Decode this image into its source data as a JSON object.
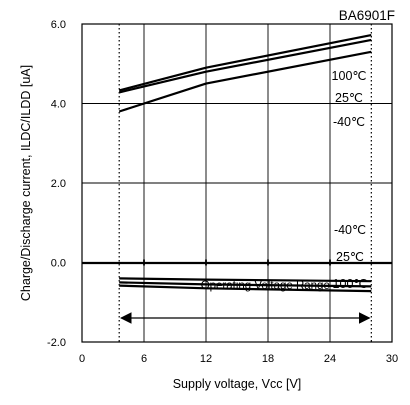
{
  "chart_data": {
    "type": "line",
    "corner_label": "BA6901F",
    "xlabel": "Supply voltage, Vcc [V]",
    "ylabel": "Charge/Discharge current, ILDC/ILDD [uA]",
    "xlim": [
      0,
      30
    ],
    "ylim": [
      -2.0,
      6.0
    ],
    "x_ticks": [
      0,
      6,
      12,
      18,
      24,
      30
    ],
    "y_ticks": [
      -2.0,
      0.0,
      2.0,
      4.0,
      6.0
    ],
    "x_tick_labels": [
      "0",
      "6",
      "12",
      "18",
      "24",
      "30"
    ],
    "y_tick_labels": [
      "-2.0",
      "0.0",
      "2.0",
      "4.0",
      "6.0"
    ],
    "grid": true,
    "dotted_verticals": [
      3.6,
      28
    ],
    "series": [
      {
        "name": "100℃",
        "group": "charge",
        "x": [
          3.6,
          12,
          28
        ],
        "y": [
          4.33,
          4.9,
          5.72
        ]
      },
      {
        "name": "25℃",
        "group": "charge",
        "x": [
          3.6,
          12,
          28
        ],
        "y": [
          4.28,
          4.8,
          5.6
        ]
      },
      {
        "name": "-40℃",
        "group": "charge",
        "x": [
          3.6,
          12,
          28
        ],
        "y": [
          3.8,
          4.5,
          5.3
        ]
      },
      {
        "name": "-40℃",
        "group": "discharge",
        "x": [
          3.6,
          12,
          28
        ],
        "y": [
          -0.4,
          -0.43,
          -0.47
        ]
      },
      {
        "name": "25℃",
        "group": "discharge",
        "x": [
          3.6,
          12,
          28
        ],
        "y": [
          -0.5,
          -0.55,
          -0.6
        ]
      },
      {
        "name": "100℃",
        "group": "discharge",
        "x": [
          3.6,
          12,
          28
        ],
        "y": [
          -0.58,
          -0.65,
          -0.72
        ]
      }
    ],
    "charge_labels": [
      "100℃",
      "25℃",
      "-40℃"
    ],
    "discharge_labels": [
      "-40℃",
      "25℃",
      "100℃"
    ],
    "annotation": "Operating Voltage Range",
    "range_x": [
      3.6,
      28
    ]
  }
}
